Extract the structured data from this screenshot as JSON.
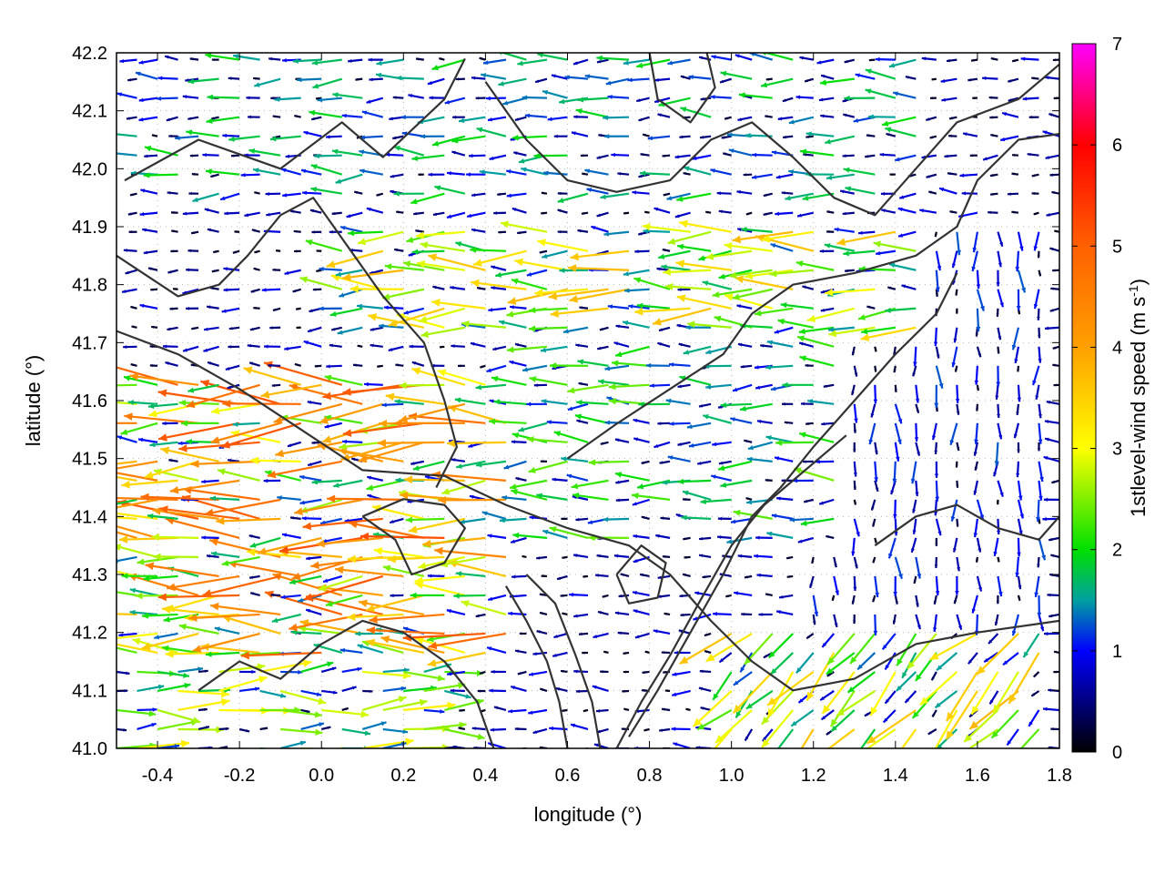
{
  "chart_data": {
    "type": "vector-field",
    "xlabel": "longitude (°)",
    "ylabel": "latitude (°)",
    "xlim": [
      -0.5,
      1.8
    ],
    "ylim": [
      41.0,
      42.2
    ],
    "xticks": [
      "-0.4",
      "-0.2",
      "0.0",
      "0.2",
      "0.4",
      "0.6",
      "0.8",
      "1.0",
      "1.2",
      "1.4",
      "1.6",
      "1.8"
    ],
    "xtick_values": [
      -0.4,
      -0.2,
      0.0,
      0.2,
      0.4,
      0.6,
      0.8,
      1.0,
      1.2,
      1.4,
      1.6,
      1.8
    ],
    "yticks": [
      "41.0",
      "41.1",
      "41.2",
      "41.3",
      "41.4",
      "41.5",
      "41.6",
      "41.7",
      "41.8",
      "41.9",
      "42.0",
      "42.1",
      "42.2"
    ],
    "ytick_values": [
      41.0,
      41.1,
      41.2,
      41.3,
      41.4,
      41.5,
      41.6,
      41.7,
      41.8,
      41.9,
      42.0,
      42.1,
      42.2
    ],
    "grid": "dotted",
    "colorbar": {
      "label_main": "1stlevel-wind speed (m s",
      "label_sup": "-1",
      "label_close": ")",
      "range": [
        0,
        7
      ],
      "ticks": [
        "0",
        "1",
        "2",
        "3",
        "4",
        "5",
        "6",
        "7"
      ],
      "tick_values": [
        0,
        1,
        2,
        3,
        4,
        5,
        6,
        7
      ],
      "palette_stops": [
        {
          "value": 0,
          "color": "#000000"
        },
        {
          "value": 1,
          "color": "#0000ff"
        },
        {
          "value": 1.5,
          "color": "#00a0a0"
        },
        {
          "value": 2,
          "color": "#00e000"
        },
        {
          "value": 3,
          "color": "#ffff00"
        },
        {
          "value": 4,
          "color": "#ffa000"
        },
        {
          "value": 5,
          "color": "#ff6000"
        },
        {
          "value": 6,
          "color": "#ff0000"
        },
        {
          "value": 7,
          "color": "#ff00ff"
        }
      ]
    },
    "vector_grid": {
      "lon_start": -0.5,
      "lon_step": 0.05,
      "lat_start": 41.0,
      "lat_step": 0.033
    },
    "wind_regions": [
      {
        "name": "west-coast-strong",
        "lon": [
          -0.5,
          0.45
        ],
        "lat": [
          41.15,
          41.65
        ],
        "speed": 3.6,
        "direction": "W"
      },
      {
        "name": "central-band",
        "lon": [
          0.0,
          1.5
        ],
        "lat": [
          41.7,
          41.9
        ],
        "speed": 2.6,
        "direction": "W"
      },
      {
        "name": "mid-basin",
        "lon": [
          0.4,
          1.3
        ],
        "lat": [
          41.35,
          41.7
        ],
        "speed": 1.7,
        "direction": "W"
      },
      {
        "name": "northern-hills",
        "lon": [
          -0.5,
          1.5
        ],
        "lat": [
          41.95,
          42.2
        ],
        "speed": 1.4,
        "direction": "W"
      },
      {
        "name": "southeast-coast",
        "lon": [
          1.0,
          1.8
        ],
        "lat": [
          41.0,
          41.2
        ],
        "speed": 2.6,
        "direction": "SW"
      },
      {
        "name": "eastern-plain",
        "lon": [
          1.2,
          1.8
        ],
        "lat": [
          41.2,
          41.9
        ],
        "speed": 0.9,
        "direction": "S"
      },
      {
        "name": "southwest-low",
        "lon": [
          -0.5,
          0.3
        ],
        "lat": [
          41.0,
          41.15
        ],
        "speed": 2.2,
        "direction": "E"
      }
    ],
    "contours": [
      [
        [
          -0.48,
          41.98
        ],
        [
          -0.3,
          42.05
        ],
        [
          -0.1,
          42.0
        ],
        [
          0.05,
          42.08
        ],
        [
          0.15,
          42.02
        ],
        [
          0.3,
          42.12
        ],
        [
          0.35,
          42.19
        ]
      ],
      [
        [
          -0.5,
          41.72
        ],
        [
          -0.35,
          41.68
        ],
        [
          -0.2,
          41.62
        ],
        [
          -0.05,
          41.55
        ],
        [
          0.1,
          41.48
        ],
        [
          0.3,
          41.47
        ],
        [
          0.45,
          41.42
        ],
        [
          0.6,
          41.38
        ],
        [
          0.75,
          41.35
        ],
        [
          0.85,
          41.3
        ],
        [
          0.95,
          41.22
        ],
        [
          1.05,
          41.15
        ],
        [
          1.15,
          41.1
        ],
        [
          1.3,
          41.12
        ],
        [
          1.45,
          41.18
        ],
        [
          1.6,
          41.2
        ],
        [
          1.8,
          41.22
        ]
      ],
      [
        [
          0.28,
          41.45
        ],
        [
          0.33,
          41.52
        ],
        [
          0.3,
          41.6
        ],
        [
          0.25,
          41.7
        ],
        [
          0.15,
          41.78
        ],
        [
          0.05,
          41.88
        ],
        [
          -0.02,
          41.95
        ],
        [
          -0.1,
          41.92
        ],
        [
          -0.18,
          41.85
        ],
        [
          -0.25,
          41.8
        ],
        [
          -0.35,
          41.78
        ],
        [
          -0.5,
          41.85
        ]
      ],
      [
        [
          0.45,
          41.28
        ],
        [
          0.5,
          41.22
        ],
        [
          0.55,
          41.15
        ],
        [
          0.58,
          41.08
        ],
        [
          0.6,
          41.0
        ]
      ],
      [
        [
          0.5,
          41.3
        ],
        [
          0.57,
          41.25
        ],
        [
          0.62,
          41.16
        ],
        [
          0.66,
          41.08
        ],
        [
          0.68,
          41.0
        ]
      ],
      [
        [
          0.6,
          41.5
        ],
        [
          0.72,
          41.56
        ],
        [
          0.85,
          41.62
        ],
        [
          0.98,
          41.68
        ],
        [
          1.05,
          41.75
        ],
        [
          1.15,
          41.8
        ],
        [
          1.3,
          41.82
        ],
        [
          1.45,
          41.85
        ],
        [
          1.55,
          41.9
        ],
        [
          1.6,
          41.98
        ],
        [
          1.7,
          42.05
        ],
        [
          1.8,
          42.06
        ]
      ],
      [
        [
          0.75,
          41.02
        ],
        [
          0.82,
          41.1
        ],
        [
          0.9,
          41.2
        ],
        [
          0.98,
          41.3
        ],
        [
          1.05,
          41.4
        ],
        [
          1.12,
          41.45
        ],
        [
          1.2,
          41.52
        ],
        [
          1.3,
          41.6
        ],
        [
          1.4,
          41.68
        ],
        [
          1.5,
          41.75
        ],
        [
          1.55,
          41.82
        ]
      ],
      [
        [
          0.72,
          41.0
        ],
        [
          0.78,
          41.08
        ],
        [
          0.85,
          41.16
        ],
        [
          0.92,
          41.25
        ],
        [
          1.0,
          41.35
        ],
        [
          1.08,
          41.42
        ],
        [
          1.18,
          41.48
        ],
        [
          1.28,
          41.54
        ]
      ],
      [
        [
          0.4,
          42.15
        ],
        [
          0.5,
          42.05
        ],
        [
          0.6,
          41.98
        ],
        [
          0.72,
          41.96
        ],
        [
          0.85,
          41.98
        ],
        [
          0.95,
          42.05
        ],
        [
          1.05,
          42.08
        ],
        [
          1.15,
          42.02
        ],
        [
          1.25,
          41.95
        ],
        [
          1.35,
          41.92
        ],
        [
          1.45,
          42.0
        ],
        [
          1.55,
          42.08
        ],
        [
          1.7,
          42.12
        ],
        [
          1.8,
          42.18
        ]
      ],
      [
        [
          0.8,
          42.2
        ],
        [
          0.82,
          42.12
        ],
        [
          0.9,
          42.08
        ],
        [
          0.96,
          42.14
        ],
        [
          0.94,
          42.2
        ]
      ],
      [
        [
          0.72,
          41.3
        ],
        [
          0.78,
          41.35
        ],
        [
          0.84,
          41.32
        ],
        [
          0.82,
          41.26
        ],
        [
          0.75,
          41.25
        ],
        [
          0.72,
          41.3
        ]
      ],
      [
        [
          1.35,
          41.35
        ],
        [
          1.45,
          41.4
        ],
        [
          1.55,
          41.42
        ],
        [
          1.65,
          41.38
        ],
        [
          1.75,
          41.36
        ],
        [
          1.8,
          41.4
        ]
      ],
      [
        [
          -0.3,
          41.1
        ],
        [
          -0.2,
          41.15
        ],
        [
          -0.1,
          41.12
        ],
        [
          0.0,
          41.18
        ],
        [
          0.1,
          41.22
        ],
        [
          0.2,
          41.2
        ],
        [
          0.3,
          41.15
        ],
        [
          0.38,
          41.08
        ],
        [
          0.42,
          41.0
        ]
      ],
      [
        [
          0.1,
          41.4
        ],
        [
          0.18,
          41.36
        ],
        [
          0.22,
          41.3
        ],
        [
          0.3,
          41.32
        ],
        [
          0.35,
          41.38
        ],
        [
          0.3,
          41.42
        ],
        [
          0.2,
          41.43
        ],
        [
          0.1,
          41.4
        ]
      ]
    ]
  }
}
